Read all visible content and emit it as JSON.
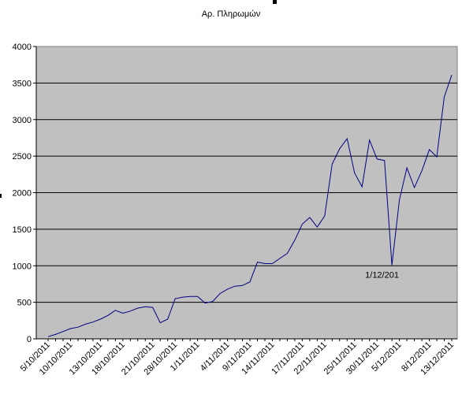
{
  "chart_data": {
    "type": "line",
    "title": "Αρ. Πληρωμών",
    "xlabel": "",
    "ylabel": "",
    "ylim": [
      0,
      4000
    ],
    "yticks": [
      0,
      500,
      1000,
      1500,
      2000,
      2500,
      3000,
      3500,
      4000
    ],
    "grid": true,
    "legend": "none",
    "colors": {
      "line": "#000080",
      "plot_bg": "#c0c0c0",
      "grid": "#000000"
    },
    "x_tick_labels": [
      "5/10/2011",
      "10/10/2011",
      "13/10/2011",
      "18/10/2011",
      "21/10/2011",
      "28/10/2011",
      "1/11/2011",
      "4/11/2011",
      "9/11/2011",
      "14/11/2011",
      "17/11/2011",
      "22/11/2011",
      "25/11/2011",
      "30/11/2011",
      "5/12/2011",
      "8/12/2011",
      "13/12/2011"
    ],
    "annotation": {
      "text": "1/12/201",
      "index": 46
    },
    "series": [
      {
        "values": [
          30,
          60,
          100,
          140,
          160,
          200,
          230,
          270,
          320,
          390,
          350,
          380,
          420,
          440,
          430,
          220,
          270,
          550,
          570,
          580,
          580,
          490,
          510,
          620,
          680,
          720,
          730,
          780,
          1050,
          1030,
          1030,
          1100,
          1170,
          1350,
          1570,
          1660,
          1530,
          1680,
          2390,
          2600,
          2740,
          2270,
          2080,
          2720,
          2460,
          2440,
          1010,
          1900,
          2340,
          2070,
          2300,
          2590,
          2490,
          3310,
          3610
        ]
      }
    ]
  }
}
